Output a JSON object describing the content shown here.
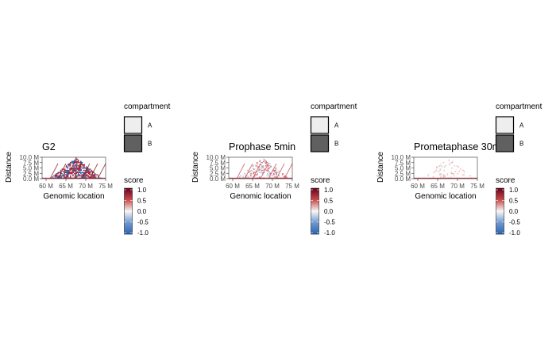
{
  "chart_data": [
    {
      "type": "heatmap",
      "title": "G2",
      "xlabel": "Genomic location",
      "ylabel": "Distance",
      "xlim": [
        59,
        75
      ],
      "ylim": [
        0,
        10
      ],
      "x_ticks": [
        "60 M",
        "65 M",
        "70 M",
        "75 M"
      ],
      "y_ticks": [
        "0.0 M",
        "2.5 M",
        "5.0 M",
        "7.5 M",
        "10.0 M"
      ],
      "triangle_apex_height": 10,
      "score_pattern": "strong",
      "compartment_legend": {
        "title": "compartment",
        "items": [
          {
            "label": "A",
            "color": "#eeeeee"
          },
          {
            "label": "B",
            "color": "#606060"
          }
        ]
      },
      "score_legend": {
        "title": "score",
        "min": -1.0,
        "max": 1.0,
        "labels": [
          "1.0",
          "0.5",
          "0.0",
          "-0.5",
          "-1.0"
        ],
        "colors": [
          "#67001f",
          "#b2182b",
          "#f7f7f7",
          "#2166ac",
          "#4a7fc4"
        ]
      }
    },
    {
      "type": "heatmap",
      "title": "Prophase 5min",
      "xlabel": "Genomic location",
      "ylabel": "Distance",
      "xlim": [
        59,
        75
      ],
      "ylim": [
        0,
        10
      ],
      "x_ticks": [
        "60 M",
        "65 M",
        "70 M",
        "75 M"
      ],
      "y_ticks": [
        "0.0 M",
        "2.5 M",
        "5.0 M",
        "7.5 M",
        "10.0 M"
      ],
      "triangle_apex_height": 10,
      "score_pattern": "medium",
      "compartment_legend": {
        "title": "compartment",
        "items": [
          {
            "label": "A",
            "color": "#eeeeee"
          },
          {
            "label": "B",
            "color": "#606060"
          }
        ]
      },
      "score_legend": {
        "title": "score",
        "min": -1.0,
        "max": 1.0,
        "labels": [
          "1.0",
          "0.5",
          "0.0",
          "-0.5",
          "-1.0"
        ],
        "colors": [
          "#67001f",
          "#b2182b",
          "#f7f7f7",
          "#2166ac",
          "#4a7fc4"
        ]
      }
    },
    {
      "type": "heatmap",
      "title": "Prometaphase 30min",
      "xlabel": "Genomic location",
      "ylabel": "Distance",
      "xlim": [
        59,
        75
      ],
      "ylim": [
        0,
        10
      ],
      "x_ticks": [
        "60 M",
        "65 M",
        "70 M",
        "75 M"
      ],
      "y_ticks": [
        "0.0 M",
        "2.5 M",
        "5.0 M",
        "7.5 M",
        "10.0 M"
      ],
      "triangle_apex_height": 10,
      "score_pattern": "faint",
      "compartment_legend": {
        "title": "compartment",
        "items": [
          {
            "label": "A",
            "color": "#eeeeee"
          },
          {
            "label": "B",
            "color": "#606060"
          }
        ]
      },
      "score_legend": {
        "title": "score",
        "min": -1.0,
        "max": 1.0,
        "labels": [
          "1.0",
          "0.5",
          "0.0",
          "-0.5",
          "-1.0"
        ],
        "colors": [
          "#67001f",
          "#b2182b",
          "#f7f7f7",
          "#2166ac",
          "#4a7fc4"
        ]
      }
    }
  ]
}
